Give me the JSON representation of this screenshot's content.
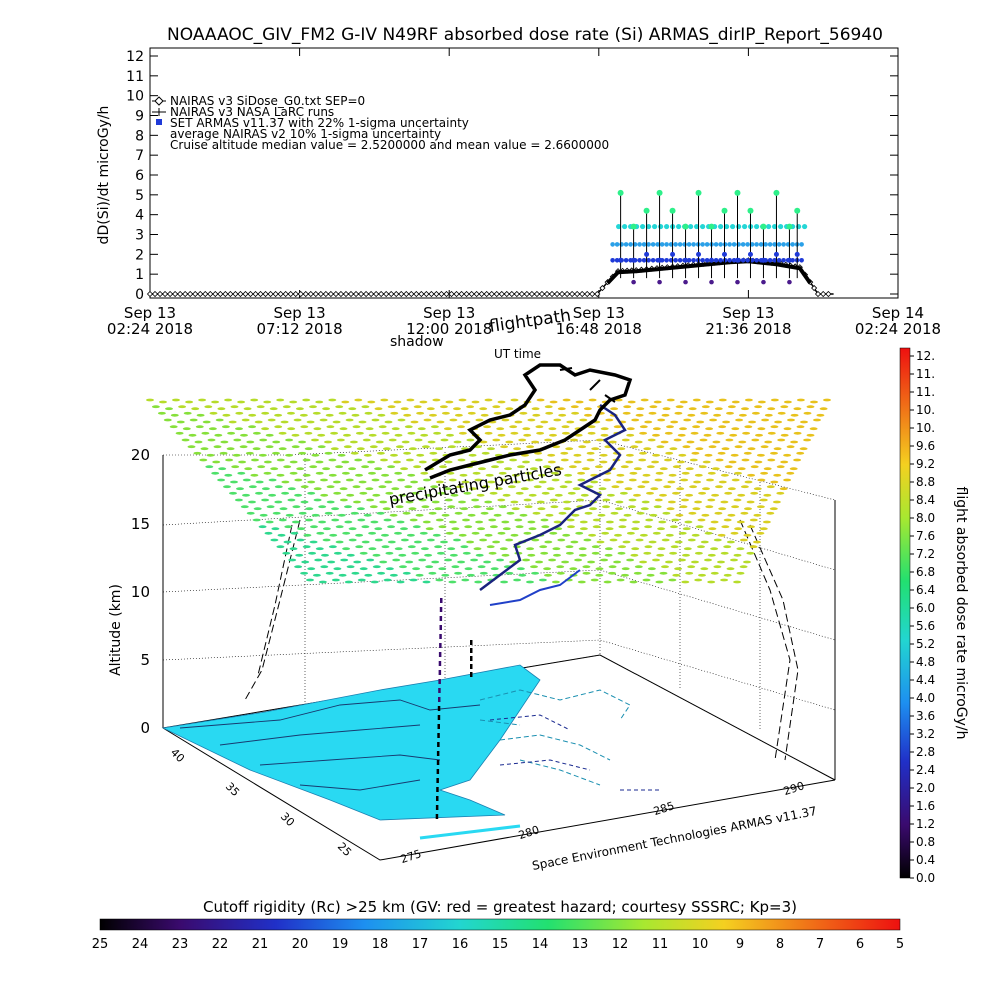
{
  "title": "NOAAAOC_GIV_FM2 G-IV    N49RF  absorbed dose rate (Si) ARMAS_dirIP_Report_56940",
  "colors": {
    "nairas_v3": "#000000",
    "armas_points": "#1f3ad8",
    "uncertainty_high": "#2ef08a",
    "uncertainty_mid": "#24d6d6",
    "uncertainty_band": "#2aa0e8",
    "uncertainty_low": "#4b1b8c",
    "map_fill": "#29d9f2"
  },
  "chart_data": [
    {
      "type": "line",
      "ylabel": "dD(Si)/dt microGy/h",
      "ylim": [
        0,
        12
      ],
      "yticks": [
        "0",
        "1",
        "2",
        "3",
        "4",
        "5",
        "6",
        "7",
        "8",
        "9",
        "10",
        "11",
        "12"
      ],
      "xticks": [
        {
          "date": "Sep 13",
          "time": "02:24 2018"
        },
        {
          "date": "Sep 13",
          "time": "07:12 2018"
        },
        {
          "date": "Sep 13",
          "time": "12:00 2018"
        },
        {
          "date": "Sep 13",
          "time": "16:48 2018"
        },
        {
          "date": "Sep 13",
          "time": "21:36 2018"
        },
        {
          "date": "Sep 14",
          "time": "02:24 2018"
        }
      ],
      "xlim": [
        "2018-09-13T02:24",
        "2018-09-14T02:24"
      ],
      "legend": {
        "placement": "top-left",
        "entries": [
          "NAIRAS v3 SiDose_G0.txt SEP=0",
          "NAIRAS v3 NASA LaRC runs",
          "SET ARMAS v11.37 with 22% 1-sigma uncertainty",
          "average NAIRAS v2 10% 1-sigma uncertainty",
          "Cruise altitude median value =   2.5200000 and mean value =   2.6600000"
        ]
      },
      "series": [
        {
          "name": "NAIRAS v3 SiDose_G0.txt SEP=0",
          "x": [
            "2018-09-13T02:24",
            "2018-09-13T16:45",
            "2018-09-13T17:05",
            "2018-09-13T17:25",
            "2018-09-13T18:00",
            "2018-09-13T19:00",
            "2018-09-13T20:00",
            "2018-09-13T21:00",
            "2018-09-13T21:36",
            "2018-09-13T22:30",
            "2018-09-13T23:15",
            "2018-09-13T23:35",
            "2018-09-13T23:50",
            "2018-09-14T00:20"
          ],
          "y": [
            0,
            0,
            0.6,
            1.15,
            1.2,
            1.35,
            1.5,
            1.65,
            1.7,
            1.55,
            1.35,
            0.6,
            0,
            0
          ]
        },
        {
          "name": "SET ARMAS v11.37 with 22% 1-sigma uncertainty",
          "x": [
            "2018-09-13T17:30",
            "2018-09-13T17:55",
            "2018-09-13T18:20",
            "2018-09-13T18:45",
            "2018-09-13T19:10",
            "2018-09-13T19:35",
            "2018-09-13T20:00",
            "2018-09-13T20:25",
            "2018-09-13T20:50",
            "2018-09-13T21:15",
            "2018-09-13T21:40",
            "2018-09-13T22:05",
            "2018-09-13T22:30",
            "2018-09-13T22:55",
            "2018-09-13T23:10"
          ],
          "y": [
            1.7,
            1.7,
            2.0,
            1.7,
            2.0,
            1.7,
            2.0,
            1.7,
            2.0,
            1.7,
            2.0,
            1.7,
            2.0,
            1.7,
            2.0
          ]
        }
      ]
    },
    {
      "type": "scatter",
      "subtype": "3d-flight-track",
      "zlabel": "Altitude (km)",
      "zticks": [
        "0",
        "5",
        "10",
        "15",
        "20"
      ],
      "zlim": [
        0,
        22
      ],
      "lat_ticks": [
        "40",
        "35",
        "30",
        "25"
      ],
      "lon_ticks": [
        "275",
        "280",
        "285",
        "290"
      ],
      "annotations": [
        "shadow",
        "flightpath",
        "UT time",
        "precipitating particles",
        "Space Environment Technologies ARMAS v11.37"
      ],
      "colorbar_right": {
        "label": "flight absorbed dose rate microGy/h",
        "ticks": [
          "12.",
          "11.",
          "11.",
          "10.",
          "10.",
          "9.6",
          "9.2",
          "8.8",
          "8.4",
          "8.0",
          "7.6",
          "7.2",
          "6.8",
          "6.4",
          "6.0",
          "5.6",
          "5.2",
          "4.8",
          "4.4",
          "4.0",
          "3.6",
          "3.2",
          "2.8",
          "2.4",
          "2.0",
          "1.6",
          "1.2",
          "0.8",
          "0.4",
          "0.0"
        ]
      },
      "colorbar_bottom": {
        "label": "Cutoff rigidity (Rc) >25 km (GV: red = greatest hazard; courtesy SSSRC; Kp=3)",
        "ticks": [
          "25",
          "24",
          "23",
          "22",
          "21",
          "20",
          "19",
          "18",
          "17",
          "16",
          "15",
          "14",
          "13",
          "12",
          "11",
          "10",
          "9",
          "8",
          "7",
          "6",
          "5"
        ]
      }
    }
  ]
}
